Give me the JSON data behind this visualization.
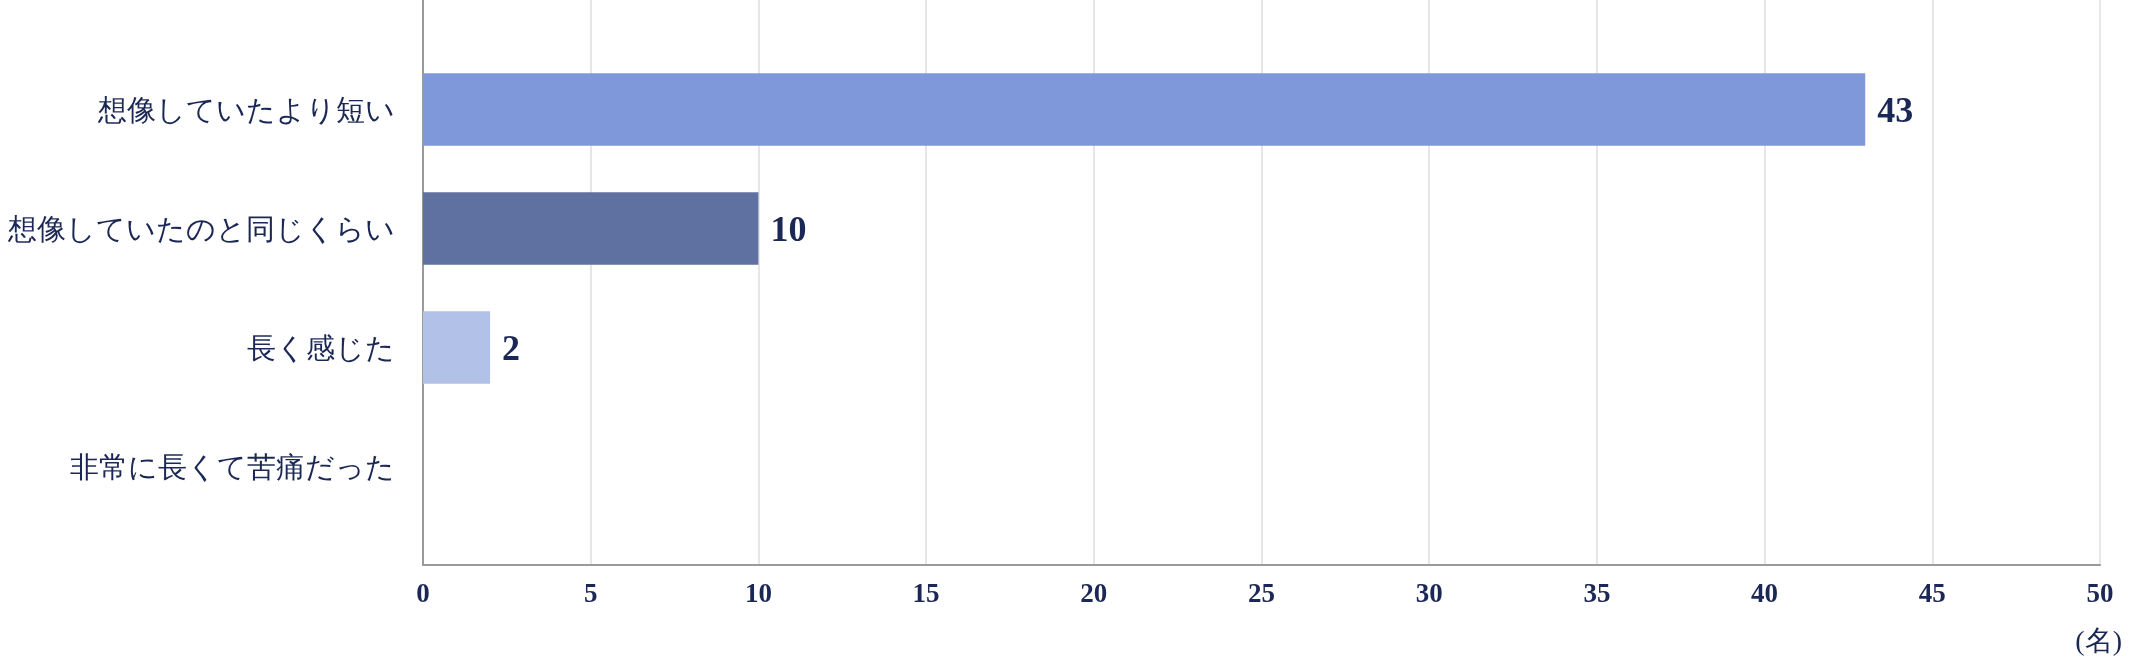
{
  "chart_data": {
    "type": "bar",
    "orientation": "horizontal",
    "categories": [
      "想像していたより短い",
      "想像していたのと同じくらい",
      "長く感じた",
      "非常に長くて苦痛だった"
    ],
    "values": [
      43,
      10,
      2,
      0
    ],
    "colors": [
      "#7f98d9",
      "#5f71a1",
      "#b2c1e8",
      "#7f98d9"
    ],
    "value_labels": [
      "43",
      "10",
      "2",
      null
    ],
    "xlabel": "(名)",
    "xlim": [
      0,
      50
    ],
    "xticks": [
      0,
      5,
      10,
      15,
      20,
      25,
      30,
      35,
      40,
      45,
      50
    ],
    "grid": "x"
  }
}
